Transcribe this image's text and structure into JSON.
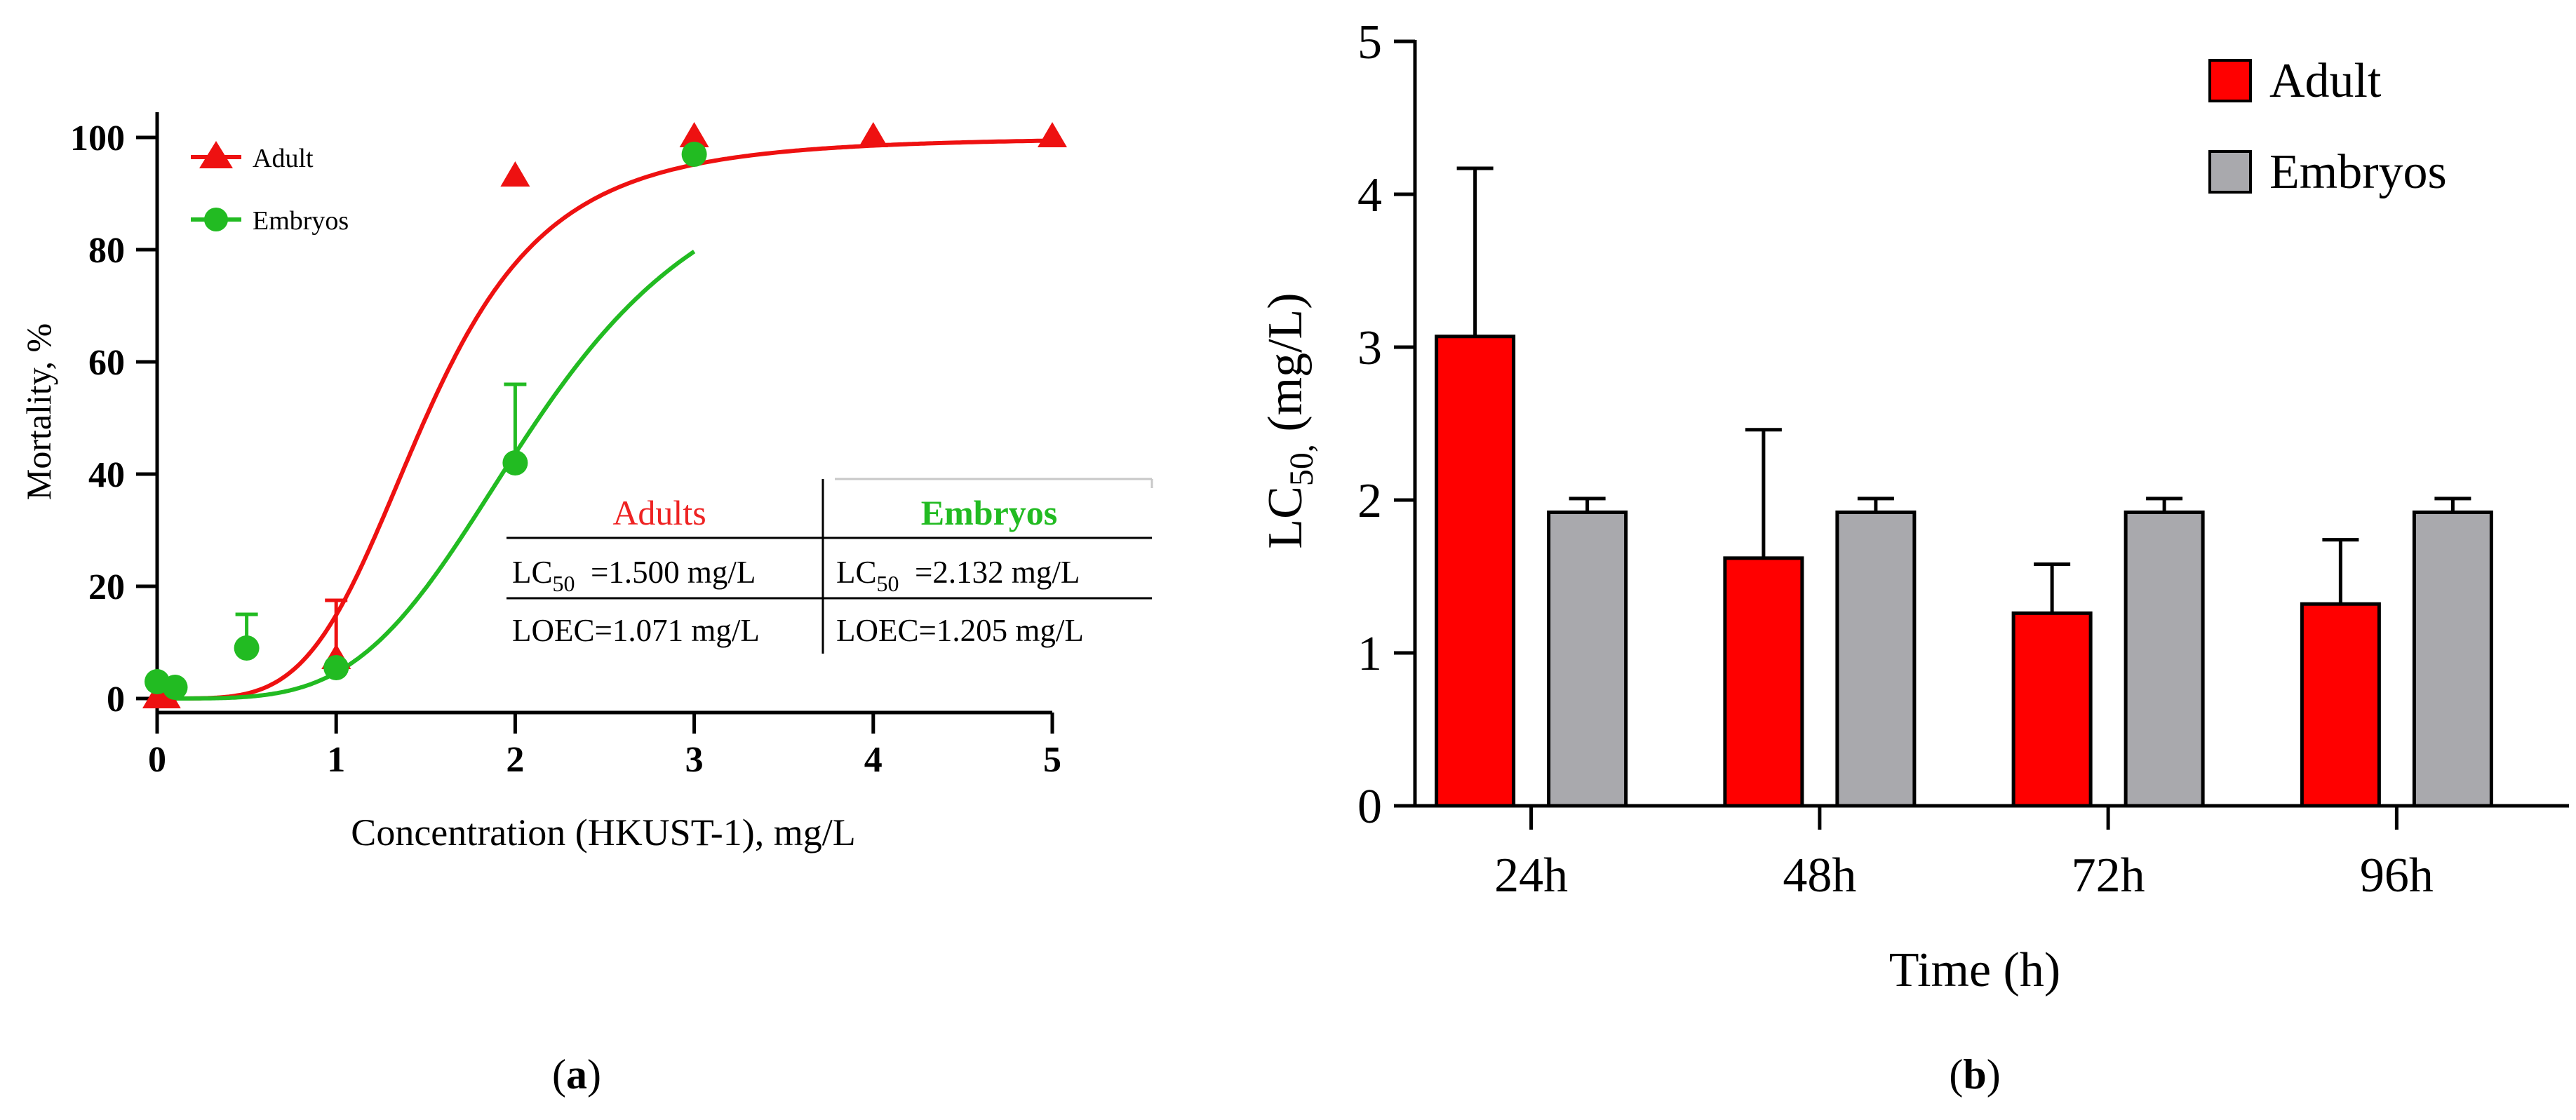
{
  "chart_data": [
    {
      "type": "scatter",
      "panel_label": "(a)",
      "xlabel": "Concentration (HKUST-1), mg/L",
      "ylabel": "Mortality, %",
      "xlim": [
        0,
        5
      ],
      "ylim": [
        0,
        100
      ],
      "xticks": [
        "0",
        "1",
        "2",
        "3",
        "4",
        "5"
      ],
      "yticks": [
        "0",
        "20",
        "40",
        "60",
        "80",
        "100"
      ],
      "legend_position": "top-left",
      "colors": {
        "Adult": "#ee1111",
        "Embryos": "#22bb22"
      },
      "series": [
        {
          "name": "Adult",
          "marker": "triangle",
          "x": [
            0,
            0.05,
            1,
            2,
            3,
            4,
            5
          ],
          "y": [
            0,
            0,
            7,
            93,
            100,
            100,
            100
          ],
          "err": [
            0,
            0,
            10.5,
            0,
            0,
            0,
            0
          ],
          "fit": {
            "model": "logistic",
            "ec50": 1.5,
            "hill": 4.3,
            "bottom": 0,
            "top": 100
          }
        },
        {
          "name": "Embryos",
          "marker": "circle",
          "x": [
            0,
            0.1,
            0.5,
            1,
            2,
            3
          ],
          "y": [
            3,
            2,
            9,
            5.5,
            42,
            97
          ],
          "err": [
            0,
            0,
            6,
            0,
            14,
            0
          ],
          "fit": {
            "model": "logistic",
            "ec50": 2.132,
            "hill": 4.0,
            "bottom": 0,
            "top": 100
          }
        }
      ],
      "inset_table": {
        "headers": [
          "Adults",
          "Embryos"
        ],
        "rows": [
          [
            {
              "prefix": "LC",
              "sub": "50",
              "suffix": "  =1.500 mg/L"
            },
            {
              "prefix": "LC",
              "sub": "50",
              "suffix": "  =2.132 mg/L"
            }
          ],
          [
            {
              "prefix": "LOEC=1.071 mg/L",
              "sub": "",
              "suffix": ""
            },
            {
              "prefix": "LOEC=1.205 mg/L",
              "sub": "",
              "suffix": ""
            }
          ]
        ]
      }
    },
    {
      "type": "bar",
      "panel_label": "(b)",
      "xlabel": "Time (h)",
      "ylabel": {
        "prefix": "LC",
        "sub": "50,",
        "suffix": " (mg/L)"
      },
      "ylim": [
        0,
        5
      ],
      "yticks": [
        "0",
        "1",
        "2",
        "3",
        "4",
        "5"
      ],
      "categories": [
        "24h",
        "48h",
        "72h",
        "96h"
      ],
      "legend_position": "top-right",
      "colors": {
        "Adult": "#ff0000",
        "Embryos": "#a9a9ad"
      },
      "series": [
        {
          "name": "Adult",
          "values": [
            3.07,
            1.62,
            1.26,
            1.32
          ],
          "err": [
            1.1,
            0.84,
            0.32,
            0.42
          ]
        },
        {
          "name": "Embryos",
          "values": [
            1.92,
            1.92,
            1.92,
            1.92
          ],
          "err": [
            0.09,
            0.09,
            0.09,
            0.09
          ]
        }
      ]
    }
  ]
}
